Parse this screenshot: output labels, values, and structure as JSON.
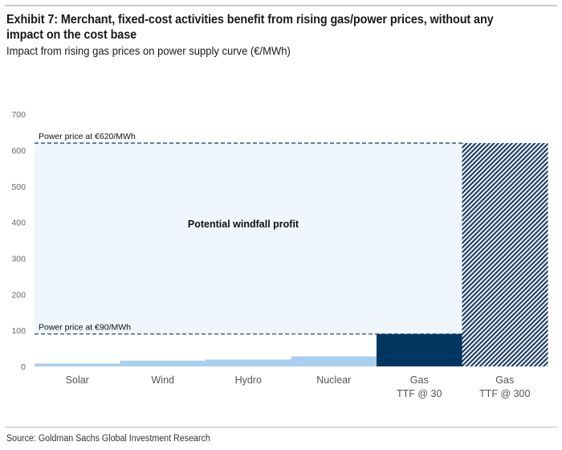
{
  "header": {
    "title": "Exhibit 7: Merchant, fixed-cost activities benefit from rising gas/power prices, without any impact on the cost base",
    "subtitle": "Impact from rising gas prices on power supply curve (€/MWh)"
  },
  "footer": {
    "source": "Source: Goldman Sachs Global Investment Research"
  },
  "colors": {
    "renewables": "#a9cfee",
    "gas_low": "#003660",
    "gas_high_hatch": "#1f3f66",
    "windfall_area": "#eef5fd",
    "dashed_line": "#2e4a66"
  },
  "chart_data": {
    "type": "bar",
    "title": "Impact from rising gas prices on power supply curve (€/MWh)",
    "xlabel": "",
    "ylabel": "",
    "ylim": [
      0,
      700
    ],
    "yticks": [
      "0",
      "100",
      "200",
      "300",
      "400",
      "500",
      "600",
      "700"
    ],
    "ytick_values": [
      0,
      100,
      200,
      300,
      400,
      500,
      600,
      700
    ],
    "grid": false,
    "categories": [
      "Solar",
      "Wind",
      "Hydro",
      "Nuclear",
      "Gas\nTTF @ 30",
      "Gas\nTTF @ 300"
    ],
    "category_lines": [
      [
        "Solar"
      ],
      [
        "Wind"
      ],
      [
        "Hydro"
      ],
      [
        "Nuclear"
      ],
      [
        "Gas",
        "TTF @ 30"
      ],
      [
        "Gas",
        "TTF @ 300"
      ]
    ],
    "values": [
      8,
      16,
      19,
      28,
      90,
      620
    ],
    "bar_styles": [
      "renewables",
      "renewables",
      "renewables",
      "renewables",
      "gas_low",
      "gas_high_hatch"
    ],
    "reference_lines": [
      {
        "value": 620,
        "label": "Power price at €620/MWh"
      },
      {
        "value": 90,
        "label": "Power price at €90/MWh"
      }
    ],
    "shaded_region": {
      "from": 0,
      "to": 620,
      "label": "Potential windfall profit"
    }
  }
}
